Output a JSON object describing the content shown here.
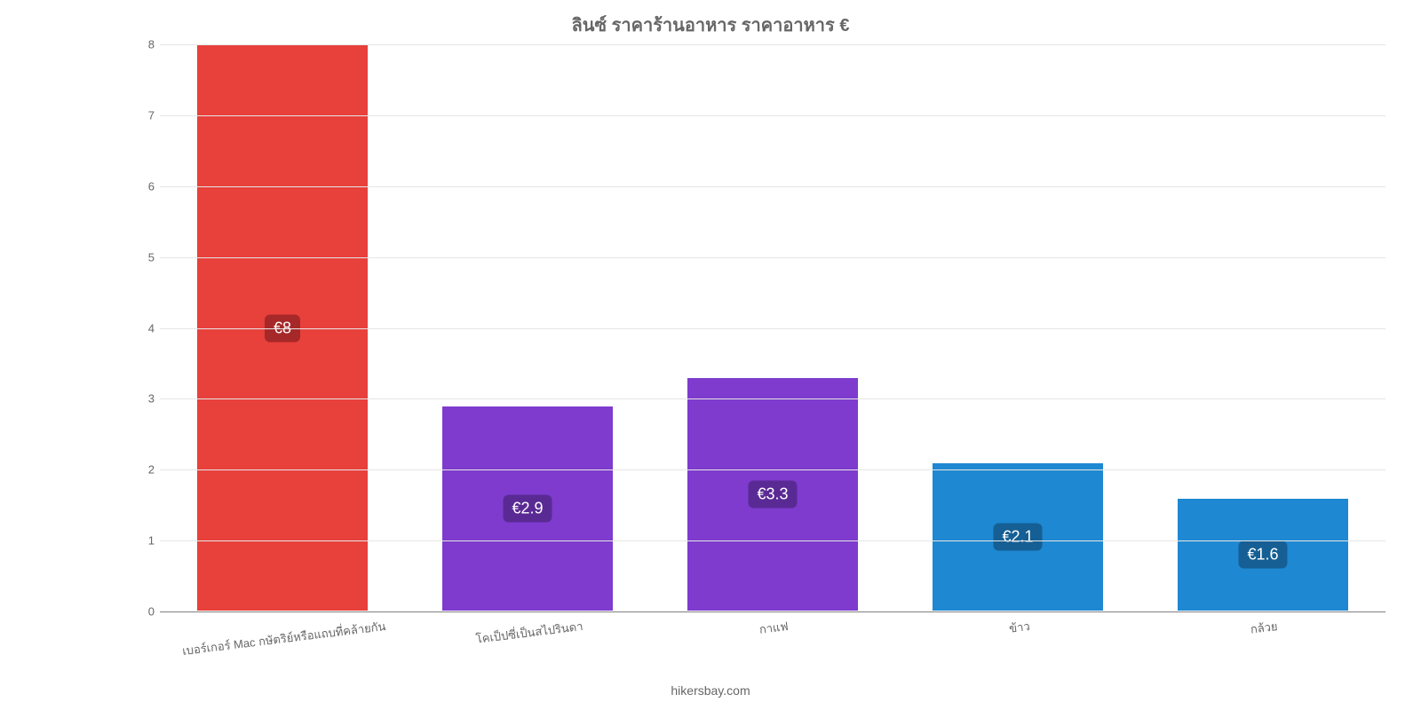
{
  "chart": {
    "type": "bar",
    "title": "ลินซ์ ราคาร้านอาหาร ราคาอาหาร €",
    "title_color": "#666666",
    "title_fontsize": 20,
    "background_color": "#ffffff",
    "grid_color": "#e6e6e6",
    "axis_line_color": "#808080",
    "tick_label_color": "#666666",
    "tick_fontsize": 13,
    "ylim": [
      0,
      8
    ],
    "ytick_step": 1,
    "yticks": [
      0,
      1,
      2,
      3,
      4,
      5,
      6,
      7,
      8
    ],
    "categories": [
      "เบอร์เกอร์ Mac กษัตริย์หรือแถบที่คล้ายกัน",
      "โคเป็ปซี่เป็นสไปรินดา",
      "กาแฟ",
      "ข้าว",
      "กล้วย"
    ],
    "values": [
      8,
      2.9,
      3.3,
      2.1,
      1.6
    ],
    "value_labels": [
      "€8",
      "€2.9",
      "€3.3",
      "€2.1",
      "€1.6"
    ],
    "bar_colors": [
      "#e8403b",
      "#7e3bce",
      "#7e3bce",
      "#1e88d2",
      "#1e88d2"
    ],
    "badge_colors": [
      "#a62828",
      "#5a2a94",
      "#5a2a94",
      "#155f94",
      "#155f94"
    ],
    "bar_border_color": "#ffffff",
    "bar_width_ratio": 0.7,
    "value_label_fontsize": 18,
    "value_label_color": "#ffffff",
    "xtick_rotation_deg": -7,
    "attribution": "hikersbay.com",
    "attribution_color": "#666666",
    "attribution_fontsize": 14
  }
}
